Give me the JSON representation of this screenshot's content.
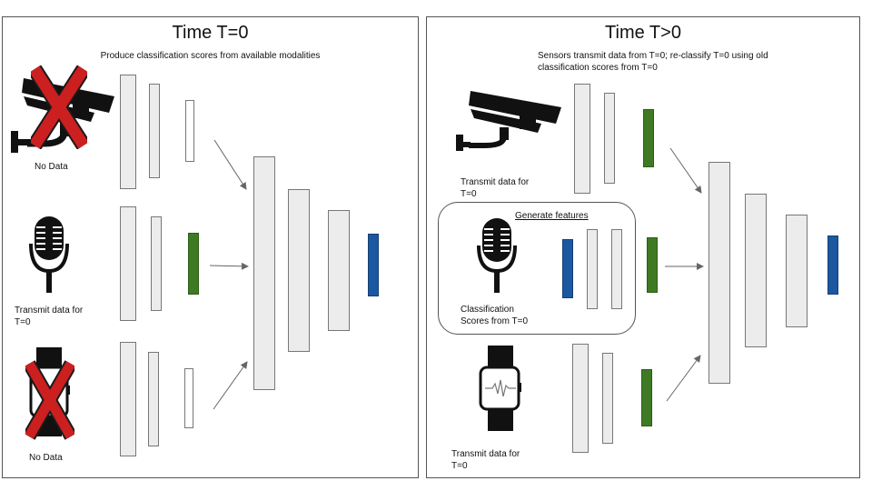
{
  "left_panel": {
    "title": "Time T=0",
    "subtitle": "Produce classification scores from available modalities",
    "captions": {
      "camera": "No Data",
      "mic": "Transmit data for\nT=0",
      "watch": "No Data"
    }
  },
  "right_panel": {
    "title": "Time T>0",
    "subtitle": "Sensors transmit data from T=0; re-classify T=0 using old\nclassification scores from T=0",
    "captions": {
      "camera": "Transmit data for\nT=0",
      "scores": "Classification\nScores from T=0",
      "watch": "Transmit data for\nT=0"
    },
    "group_label": "Generate features"
  },
  "icons": [
    "security-camera-icon",
    "microphone-icon",
    "smartwatch-icon",
    "red-x-icon"
  ],
  "colors": {
    "feature": "#3e7a24",
    "output": "#1b58a0",
    "no_data": "#cc1f1f"
  }
}
